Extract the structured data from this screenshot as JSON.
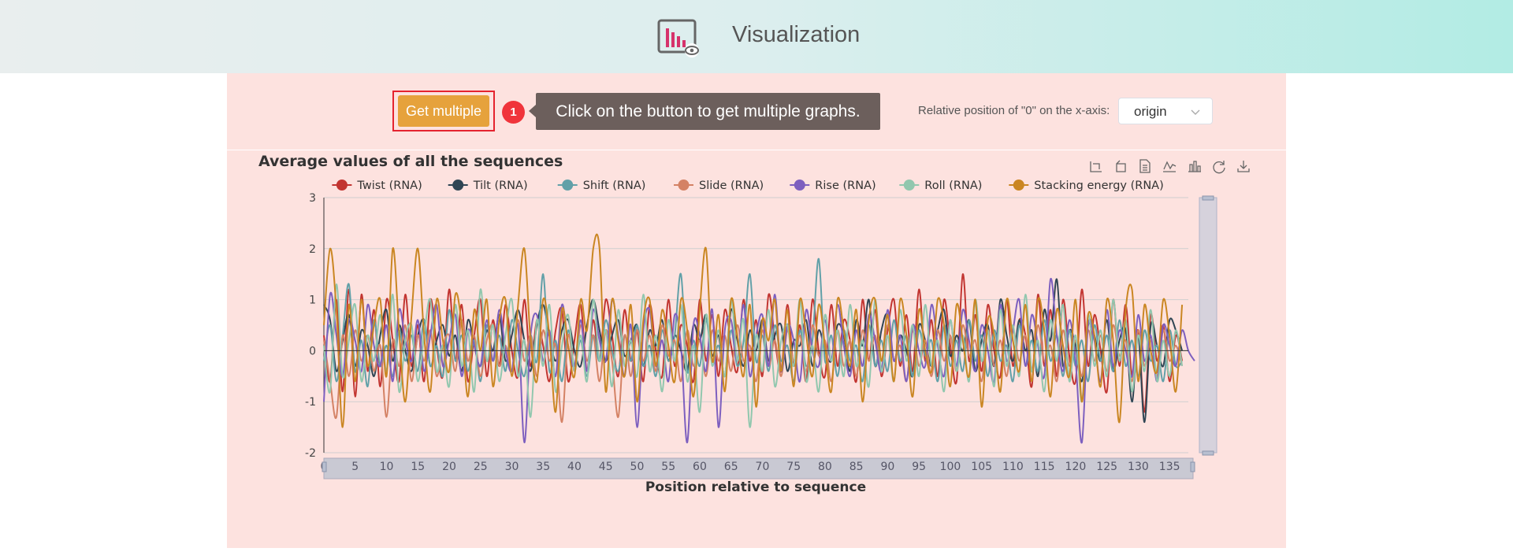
{
  "header": {
    "title": "Visualization",
    "logo_icon": "chart-monitor-eye-icon"
  },
  "controls": {
    "get_multiple_label": "Get multiple",
    "step_number": "1",
    "tip_text": "Click on the button to get multiple graphs.",
    "xaxis_label": "Relative position of \"0\" on the x-axis:",
    "xaxis_select_value": "origin"
  },
  "toolbar": {
    "icons": [
      "zoom-select-icon",
      "zoom-reset-icon",
      "data-view-icon",
      "line-chart-icon",
      "bar-chart-icon",
      "restore-icon",
      "download-icon"
    ]
  },
  "chart_data": {
    "type": "line",
    "title": "Average values of all the sequences",
    "xlabel": "Position relative to sequence",
    "ylabel": "",
    "ylim": [
      -2,
      3
    ],
    "yticks": [
      3,
      2,
      1,
      0,
      -1,
      -2
    ],
    "xlim": [
      0,
      138
    ],
    "xticks": [
      0,
      5,
      10,
      15,
      20,
      25,
      30,
      35,
      40,
      45,
      50,
      55,
      60,
      65,
      70,
      75,
      80,
      85,
      90,
      95,
      100,
      105,
      110,
      115,
      120,
      125,
      130,
      135
    ],
    "legend_position": "top",
    "grid": true,
    "series": [
      {
        "name": "Twist (RNA)",
        "color": "#c23531",
        "values": [
          0.3,
          -0.6,
          1.0,
          -0.8,
          1.2,
          -0.9,
          1.1,
          -0.4,
          0.8,
          -0.7,
          1.0,
          0.2,
          -0.6,
          1.1,
          -0.3,
          0.5,
          -0.6,
          1.0,
          0.1,
          -0.5,
          1.2,
          -0.2,
          0.9,
          -0.6,
          0.3,
          1.0,
          -0.5,
          0.6,
          -0.3,
          0.9,
          0.0,
          -0.5,
          1.0,
          -0.3,
          0.6,
          0.1,
          -0.6,
          0.4,
          0.8,
          -0.6,
          0.2,
          0.9,
          -0.4,
          0.6,
          -0.2,
          1.0,
          0.3,
          -0.5,
          0.8,
          -0.2,
          0.4,
          -0.6,
          0.9,
          0.0,
          -0.5,
          1.0,
          -0.3,
          0.5,
          0.1,
          -0.6,
          1.0,
          -0.2,
          0.7,
          -0.5,
          0.8,
          0.1,
          -0.4,
          1.0,
          -0.2,
          0.6,
          -0.5,
          1.1,
          0.2,
          -0.4,
          0.9,
          -0.3,
          0.5,
          -0.6,
          1.0,
          0.0,
          -0.5,
          0.9,
          -0.3,
          0.6,
          0.2,
          -0.6,
          1.0,
          -0.2,
          0.8,
          -0.5,
          0.4,
          1.0,
          -0.3,
          0.7,
          -0.4,
          1.2,
          -0.2,
          0.6,
          -0.5,
          1.0,
          0.1,
          -0.6,
          1.5,
          -0.2,
          0.7,
          -0.4,
          0.9,
          0.0,
          -0.5,
          1.0,
          -0.3,
          0.6,
          0.3,
          -0.7,
          1.1,
          -0.3,
          0.8,
          -0.5,
          1.0,
          -0.1,
          -0.6,
          1.2,
          -0.3,
          0.7,
          0.0,
          -0.8,
          1.0,
          -0.3,
          0.9,
          -0.5,
          0.4,
          -1.2,
          0.7,
          -0.2,
          0.5,
          -0.6,
          0.3,
          -0.2
        ]
      },
      {
        "name": "Tilt (RNA)",
        "color": "#2f4554",
        "values": [
          0.9,
          0.6,
          -0.4,
          0.2,
          0.7,
          -0.3,
          0.4,
          0.1,
          -0.5,
          0.3,
          0.8,
          -0.2,
          0.5,
          0.0,
          -0.4,
          0.3,
          0.6,
          -0.3,
          0.2,
          0.5,
          -0.1,
          0.3,
          -0.4,
          0.6,
          0.1,
          -0.3,
          0.4,
          0.0,
          0.7,
          -0.2,
          0.3,
          0.8,
          0.2,
          -0.4,
          0.5,
          0.9,
          0.3,
          -0.2,
          0.4,
          0.6,
          0.0,
          -0.3,
          0.5,
          1.0,
          0.4,
          -0.2,
          0.3,
          0.6,
          -0.1,
          0.2,
          0.5,
          -0.3,
          0.4,
          0.1,
          0.6,
          -0.2,
          0.3,
          0.0,
          -0.4,
          0.5,
          0.2,
          0.7,
          -0.1,
          0.3,
          -0.5,
          0.8,
          0.2,
          -0.3,
          0.4,
          0.0,
          0.6,
          -0.2,
          0.3,
          0.5,
          -0.4,
          0.2,
          0.1,
          0.6,
          -0.3,
          0.4,
          0.0,
          -0.2,
          0.5,
          0.3,
          -0.4,
          0.6,
          0.1,
          1.0,
          -0.3,
          0.4,
          0.7,
          -0.2,
          0.3,
          0.0,
          -0.5,
          0.5,
          0.2,
          -0.3,
          0.4,
          0.8,
          -0.1,
          0.3,
          0.0,
          0.6,
          -0.4,
          0.2,
          0.5,
          -0.3,
          1.0,
          0.3,
          -0.2,
          0.6,
          0.0,
          0.4,
          -0.5,
          0.8,
          0.2,
          1.4,
          -0.3,
          0.4,
          0.1,
          -0.6,
          0.5,
          0.3,
          -0.2,
          0.6,
          -0.4,
          0.2,
          0.4,
          -1.0,
          0.3,
          -1.4,
          0.5,
          0.1,
          -0.3,
          0.6,
          0.4,
          0.0
        ]
      },
      {
        "name": "Shift (RNA)",
        "color": "#61a0a8",
        "values": [
          -0.2,
          0.5,
          -0.6,
          0.3,
          1.3,
          -0.4,
          0.2,
          -0.7,
          0.6,
          -0.3,
          0.1,
          -0.5,
          0.4,
          -0.2,
          0.3,
          -0.4,
          0.6,
          -0.3,
          0.1,
          -0.5,
          0.8,
          -0.2,
          0.3,
          -0.4,
          0.2,
          -0.6,
          0.5,
          -0.2,
          0.3,
          -0.4,
          0.6,
          0.0,
          -0.5,
          0.3,
          -0.2,
          1.5,
          -0.4,
          0.2,
          -0.6,
          0.4,
          -0.3,
          0.2,
          -0.5,
          0.3,
          -0.2,
          0.6,
          0.0,
          -0.4,
          0.3,
          -0.2,
          0.5,
          -0.3,
          0.1,
          -0.5,
          0.4,
          -0.2,
          0.3,
          1.5,
          -0.4,
          0.2,
          -0.3,
          0.6,
          -0.2,
          0.1,
          -0.5,
          0.4,
          -0.3,
          0.2,
          1.5,
          -0.2,
          0.3,
          -0.4,
          0.5,
          -0.2,
          0.1,
          -0.6,
          0.4,
          -0.3,
          0.2,
          1.8,
          -0.2,
          0.3,
          -0.5,
          0.4,
          -0.2,
          0.1,
          -0.6,
          0.5,
          -0.3,
          0.2,
          -0.4,
          0.6,
          -0.2,
          0.3,
          -0.5,
          0.4,
          -0.1,
          0.2,
          -0.6,
          0.5,
          -0.3,
          0.2,
          -0.4,
          0.6,
          -0.2,
          0.3,
          -0.5,
          0.4,
          -0.2,
          0.1,
          -0.6,
          0.5,
          -0.3,
          0.2,
          -0.4,
          0.6,
          -0.2,
          0.3,
          -0.5,
          0.4,
          -0.3,
          0.2,
          -0.6,
          0.5,
          -0.2,
          0.3,
          -0.4,
          0.6,
          -0.3,
          0.2,
          -0.5,
          0.4,
          -0.2,
          0.1,
          -0.6,
          0.4,
          -0.3,
          -0.2
        ]
      },
      {
        "name": "Slide (RNA)",
        "color": "#d48265",
        "values": [
          0.2,
          -0.6,
          -1.3,
          0.3,
          -0.5,
          0.4,
          -0.2,
          0.3,
          -0.4,
          0.1,
          -1.3,
          0.2,
          -0.3,
          0.5,
          -0.6,
          0.3,
          -0.2,
          0.4,
          -0.5,
          0.1,
          0.3,
          -0.4,
          0.6,
          -0.2,
          0.3,
          -0.5,
          0.2,
          0.5,
          -0.3,
          0.1,
          -0.4,
          0.6,
          -0.2,
          0.3,
          -0.5,
          0.4,
          -0.2,
          0.1,
          -1.4,
          0.3,
          -0.4,
          0.5,
          -0.2,
          0.3,
          -0.6,
          0.4,
          -0.2,
          -1.3,
          0.3,
          -0.5,
          0.4,
          -0.2,
          0.3,
          -0.4,
          0.5,
          -0.1,
          0.2,
          -0.6,
          0.4,
          -0.3,
          0.2,
          -0.5,
          0.4,
          -0.2,
          0.3,
          -0.4,
          0.5,
          -0.2,
          0.1,
          -0.6,
          0.4,
          -0.3,
          0.2,
          -0.5,
          0.4,
          -0.2,
          0.3,
          -0.4,
          0.5,
          -0.1,
          0.2,
          -0.6,
          0.4,
          -0.3,
          0.2,
          -0.5,
          0.4,
          -0.2,
          0.3,
          -0.4,
          0.5,
          -0.2,
          0.1,
          -0.6,
          0.4,
          -0.3,
          0.2,
          -0.5,
          0.4,
          -0.2,
          0.3,
          -0.4,
          0.5,
          -0.1,
          0.2,
          -0.6,
          0.4,
          -0.3,
          0.2,
          -0.5,
          0.4,
          -0.2,
          0.3,
          -0.4,
          0.5,
          -0.2,
          0.1,
          -0.6,
          0.4,
          -0.3,
          0.2,
          -0.5,
          0.4,
          -0.2,
          0.3,
          -0.4,
          0.5,
          -0.1,
          0.2,
          -0.6,
          0.4,
          -0.3,
          0.2,
          -0.5,
          0.4,
          -0.2,
          0.1,
          -0.3
        ]
      },
      {
        "name": "Rise (RNA)",
        "color": "#7d5fbf",
        "values": [
          -1.0,
          1.1,
          0.3,
          -0.5,
          0.6,
          0.2,
          -0.4,
          0.9,
          0.1,
          -0.3,
          0.5,
          -0.6,
          0.8,
          0.2,
          -0.2,
          0.6,
          -0.4,
          0.3,
          0.9,
          -0.3,
          0.2,
          0.7,
          -0.5,
          0.4,
          0.1,
          -0.3,
          0.6,
          -0.2,
          0.8,
          0.0,
          -0.4,
          0.5,
          -1.8,
          0.3,
          0.7,
          -0.2,
          0.4,
          -0.5,
          0.9,
          0.1,
          -0.3,
          0.6,
          -0.4,
          0.8,
          0.2,
          -0.2,
          1.0,
          0.3,
          -0.5,
          0.5,
          -1.5,
          0.4,
          0.8,
          -0.3,
          0.2,
          -0.6,
          0.7,
          0.1,
          -1.8,
          0.5,
          0.3,
          -0.4,
          0.8,
          -1.5,
          0.4,
          0.6,
          -0.2,
          0.9,
          -0.5,
          0.3,
          0.7,
          -0.3,
          1.1,
          -0.4,
          0.5,
          0.2,
          -0.6,
          0.8,
          0.0,
          -0.3,
          0.6,
          -0.2,
          0.9,
          0.1,
          -0.5,
          0.4,
          -0.3,
          0.7,
          0.2,
          -0.4,
          0.8,
          -0.2,
          0.3,
          -0.6,
          0.5,
          0.0,
          -0.3,
          0.9,
          0.1,
          -0.5,
          0.6,
          -0.3,
          0.8,
          0.2,
          -0.4,
          0.5,
          0.0,
          -0.6,
          0.9,
          -0.2,
          0.4,
          1.0,
          -0.3,
          0.7,
          0.1,
          -0.5,
          1.4,
          0.3,
          -0.4,
          0.6,
          -0.2,
          -1.8,
          0.5,
          0.2,
          -0.6,
          0.8,
          -0.3,
          0.4,
          0.0,
          -0.5,
          0.7,
          -0.2,
          0.3,
          -0.6,
          0.5,
          0.1,
          -0.3,
          0.4,
          0.0,
          -0.2
        ]
      },
      {
        "name": "Roll (RNA)",
        "color": "#91c7ae",
        "values": [
          0.1,
          -0.8,
          1.3,
          -0.5,
          0.2,
          0.9,
          -0.6,
          0.3,
          -0.2,
          0.7,
          -0.4,
          1.1,
          -0.8,
          0.2,
          0.5,
          -0.6,
          0.3,
          1.0,
          -0.4,
          0.1,
          -0.7,
          0.9,
          -0.3,
          0.4,
          -0.8,
          1.2,
          -0.2,
          0.5,
          -0.6,
          0.3,
          1.0,
          -0.5,
          0.2,
          -1.3,
          0.6,
          -0.3,
          0.9,
          -0.8,
          0.1,
          0.7,
          -0.4,
          0.3,
          -0.6,
          1.0,
          -0.2,
          0.4,
          -0.7,
          0.8,
          -0.3,
          0.2,
          -0.5,
          1.1,
          -0.4,
          0.3,
          -0.8,
          0.6,
          -0.2,
          0.9,
          -0.6,
          0.1,
          -1.2,
          0.7,
          -0.3,
          0.4,
          -0.5,
          1.0,
          -0.2,
          0.6,
          -1.5,
          0.3,
          -0.4,
          0.8,
          -0.7,
          0.2,
          0.5,
          -0.3,
          1.0,
          -0.6,
          0.1,
          -0.8,
          0.7,
          -0.2,
          0.4,
          -0.5,
          0.9,
          -0.3,
          0.2,
          -0.7,
          1.0,
          -0.4,
          0.3,
          -0.6,
          0.8,
          -0.2,
          0.5,
          -0.5,
          0.9,
          -0.3,
          0.2,
          -0.8,
          0.6,
          -0.4,
          0.3,
          -0.6,
          1.0,
          -0.2,
          0.4,
          -0.7,
          0.8,
          -0.3,
          0.5,
          -0.5,
          1.1,
          -0.4,
          0.2,
          -0.8,
          0.6,
          -0.2,
          0.9,
          -0.6,
          0.3,
          -1.0,
          0.7,
          -0.3,
          0.4,
          -0.5,
          1.0,
          -0.2,
          0.6,
          -0.8,
          0.3,
          -0.4,
          0.8,
          -0.6,
          0.2,
          -0.5,
          0.4,
          -0.3
        ]
      },
      {
        "name": "Stacking energy (RNA)",
        "color": "#ca8622",
        "values": [
          0.5,
          2.0,
          0.8,
          -1.5,
          0.9,
          -0.6,
          1.0,
          -0.3,
          0.5,
          1.0,
          -0.5,
          2.0,
          0.4,
          -1.0,
          0.7,
          2.0,
          0.3,
          -0.8,
          1.0,
          0.2,
          -0.4,
          1.1,
          0.5,
          -0.9,
          0.8,
          0.0,
          1.0,
          -0.7,
          0.6,
          1.0,
          -0.5,
          0.9,
          2.0,
          0.2,
          -0.6,
          1.0,
          0.3,
          -1.2,
          0.8,
          0.1,
          -0.5,
          1.0,
          0.4,
          2.0,
          2.0,
          -0.8,
          1.0,
          0.2,
          -0.5,
          0.9,
          -1.0,
          0.6,
          1.0,
          -0.3,
          0.8,
          0.1,
          -0.6,
          1.0,
          0.4,
          -0.9,
          0.8,
          2.0,
          -0.2,
          0.7,
          -0.8,
          1.0,
          0.3,
          -0.5,
          0.9,
          -1.1,
          0.6,
          0.2,
          1.0,
          -0.4,
          0.8,
          -0.7,
          1.0,
          0.3,
          -0.5,
          0.9,
          0.1,
          -0.8,
          1.0,
          0.4,
          -0.3,
          0.8,
          -1.0,
          0.6,
          1.0,
          -0.2,
          0.7,
          -0.6,
          1.0,
          0.3,
          -0.9,
          0.8,
          0.0,
          -0.4,
          1.0,
          0.5,
          -0.7,
          0.9,
          0.2,
          -0.5,
          1.0,
          -1.1,
          0.6,
          0.3,
          -0.8,
          1.0,
          0.2,
          -0.4,
          0.9,
          -0.6,
          1.0,
          0.4,
          -0.9,
          0.8,
          0.1,
          -0.5,
          1.0,
          -1.0,
          0.7,
          0.3,
          -0.7,
          1.0,
          0.2,
          -1.4,
          0.8,
          1.2,
          -0.6,
          0.9,
          0.0,
          -0.4,
          1.0,
          0.3,
          -0.8,
          0.9
        ]
      }
    ]
  }
}
